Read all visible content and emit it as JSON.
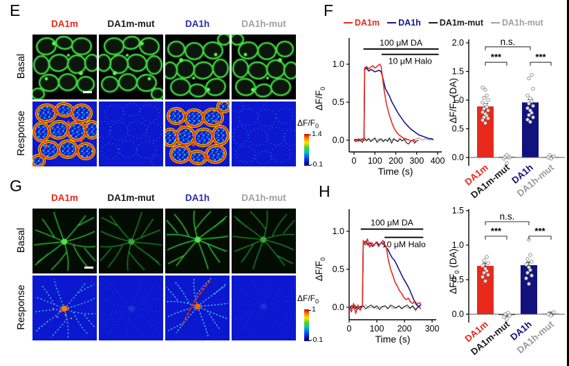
{
  "panels": {
    "E": {
      "letter": "E",
      "columns": [
        {
          "label": "DA1m",
          "color": "#e8291c"
        },
        {
          "label": "DA1m-mut",
          "color": "#1a1a1a"
        },
        {
          "label": "DA1h",
          "color": "#2a2aa8"
        },
        {
          "label": "DA1h-mut",
          "color": "#a0a0a0"
        }
      ],
      "row_labels": [
        "Basal",
        "Response"
      ],
      "colorbar": {
        "title_pre": "ΔF/F",
        "title_sub": "0",
        "max": "1.4",
        "min": "-0.1"
      }
    },
    "F": {
      "letter": "F",
      "legend": [
        {
          "label": "DA1m",
          "color": "#e8291c"
        },
        {
          "label": "DA1h",
          "color": "#16168c"
        },
        {
          "label": "DA1m-mut",
          "color": "#1a1a1a"
        },
        {
          "label": "DA1h-mut",
          "color": "#a0a0a0"
        }
      ]
    },
    "G": {
      "letter": "G",
      "columns": [
        {
          "label": "DA1m",
          "color": "#e8291c"
        },
        {
          "label": "DA1m-mut",
          "color": "#1a1a1a"
        },
        {
          "label": "DA1h",
          "color": "#2a2aa8"
        },
        {
          "label": "DA1h-mut",
          "color": "#a0a0a0"
        }
      ],
      "row_labels": [
        "Basal",
        "Response"
      ],
      "colorbar": {
        "title_pre": "ΔF/F",
        "title_sub": "0",
        "max": "1",
        "min": "-0.1"
      }
    },
    "H": {
      "letter": "H"
    }
  },
  "chart_data": [
    {
      "id": "F-trace",
      "type": "line",
      "xlabel": "Time (s)",
      "ylabel_pre": "ΔF/F",
      "ylabel_sub": "0",
      "ylabel_post": "",
      "xlim": [
        0,
        410
      ],
      "ylim": [
        -0.15,
        1.35
      ],
      "xticks": [
        0,
        100,
        200,
        300,
        400
      ],
      "yticks": [
        0,
        0.5,
        1
      ],
      "ytick_labels": [
        "0.0",
        "0.5",
        "1.0"
      ],
      "stim_bars": [
        {
          "label": "100 μM DA",
          "x0": 45,
          "x1": 405,
          "y": 1.2,
          "label_side": "above"
        },
        {
          "label": "10 μM Halo",
          "x0": 132,
          "x1": 405,
          "y": 1.13,
          "label_side": "below"
        }
      ],
      "series": [
        {
          "name": "DA1h-mut",
          "color": "#a0a0a0",
          "width": 1.1,
          "x": [
            0,
            10,
            20,
            30,
            40,
            50,
            60,
            70,
            80,
            90,
            100,
            110,
            120,
            130,
            140,
            150,
            160,
            170,
            180,
            190,
            200,
            210,
            220,
            230,
            240,
            250,
            260,
            270,
            280,
            290,
            300,
            310,
            320,
            330,
            340,
            350,
            360,
            370,
            380
          ],
          "y": [
            0,
            0.01,
            -0.01,
            0.02,
            0,
            -0.01,
            0.01,
            0.02,
            0,
            -0.01,
            0.01,
            0,
            0.02,
            -0.01,
            0,
            0.01,
            -0.02,
            0.01,
            0,
            0.02,
            -0.01,
            0,
            0.01,
            -0.01,
            0.02,
            0,
            0.01,
            -0.01,
            0,
            0.01,
            0.02,
            0.03,
            0.01,
            0,
            0.02,
            0.01,
            0,
            0.01,
            0
          ]
        },
        {
          "name": "DA1m-mut",
          "color": "#1a1a1a",
          "width": 1.1,
          "x": [
            0,
            10,
            20,
            30,
            40,
            50,
            60,
            70,
            80,
            90,
            100,
            110,
            120,
            130,
            140,
            150,
            160,
            170,
            180,
            190,
            200,
            210,
            220,
            230,
            240,
            250,
            260,
            270,
            280,
            290,
            300,
            310
          ],
          "y": [
            0.01,
            -0.02,
            0.02,
            0,
            -0.03,
            0.03,
            -0.01,
            0.02,
            -0.02,
            0.01,
            0.03,
            -0.03,
            0,
            0.02,
            -0.02,
            0.01,
            -0.01,
            0.03,
            -0.04,
            0.02,
            0,
            -0.02,
            0.02,
            -0.01,
            0.01,
            -0.03,
            -0.05,
            -0.02,
            0,
            -0.04,
            -0.01,
            0
          ]
        },
        {
          "name": "DA1h",
          "color": "#16168c",
          "width": 1.6,
          "x": [
            0,
            10,
            20,
            30,
            40,
            48,
            51,
            60,
            70,
            80,
            90,
            100,
            110,
            120,
            130,
            138,
            150,
            160,
            170,
            180,
            190,
            200,
            210,
            220,
            230,
            240,
            250,
            260,
            270,
            280,
            290,
            300,
            310,
            320,
            330,
            340,
            350,
            360,
            370,
            380
          ],
          "y": [
            0,
            0.01,
            -0.01,
            0,
            0.01,
            0.02,
            0.93,
            0.95,
            0.91,
            0.93,
            0.92,
            0.9,
            0.91,
            0.92,
            0.9,
            0.82,
            0.68,
            0.63,
            0.58,
            0.51,
            0.46,
            0.41,
            0.36,
            0.32,
            0.28,
            0.24,
            0.21,
            0.18,
            0.15,
            0.13,
            0.11,
            0.09,
            0.07,
            0.06,
            0.05,
            0.04,
            0.03,
            0.02,
            0.02,
            0.01
          ]
        },
        {
          "name": "DA1m",
          "color": "#e8291c",
          "width": 1.6,
          "x": [
            0,
            10,
            20,
            30,
            40,
            48,
            51,
            60,
            70,
            80,
            90,
            100,
            110,
            118,
            124,
            130,
            136,
            145,
            155,
            165,
            175,
            185,
            195,
            205,
            215,
            225,
            235,
            245,
            255,
            265,
            275,
            285,
            295,
            305
          ],
          "y": [
            0,
            -0.02,
            0.01,
            -0.01,
            0.02,
            0,
            0.95,
            0.97,
            0.94,
            0.96,
            0.98,
            0.95,
            0.97,
            0.99,
            1.0,
            0.97,
            0.84,
            0.64,
            0.48,
            0.37,
            0.28,
            0.2,
            0.14,
            0.1,
            0.07,
            0.05,
            0.03,
            0.02,
            0.01,
            0,
            -0.01,
            0.01,
            -0.02,
            0
          ]
        }
      ]
    },
    {
      "id": "F-bar",
      "type": "bar",
      "ylabel_pre": "ΔF/F",
      "ylabel_sub": "0",
      "ylabel_post": " (DA)",
      "ylim": [
        -0.15,
        2.0
      ],
      "yticks": [
        0,
        0.5,
        1,
        1.5,
        2
      ],
      "ytick_labels": [
        "0.0",
        "0.5",
        "1.0",
        "1.5",
        "2.0"
      ],
      "categories": [
        {
          "label": "DA1m",
          "color": "#e8291c"
        },
        {
          "label": "DA1m-mut",
          "color": "#1a1a1a"
        },
        {
          "label": "DA1h",
          "color": "#12127e"
        },
        {
          "label": "DA1h-mut",
          "color": "#9a9a9a"
        }
      ],
      "values": [
        0.89,
        0.01,
        0.96,
        0.01
      ],
      "errors": [
        0.05,
        0.02,
        0.05,
        0.02
      ],
      "scatter": [
        [
          0.6,
          0.65,
          0.68,
          0.7,
          0.73,
          0.76,
          0.79,
          0.82,
          0.85,
          0.88,
          0.92,
          0.96,
          1.0,
          1.04,
          1.08,
          1.18,
          1.22
        ],
        [
          -0.1,
          -0.02,
          0,
          0.01,
          0.02,
          0.04
        ],
        [
          0.62,
          0.66,
          0.7,
          0.74,
          0.78,
          0.82,
          0.86,
          0.9,
          0.94,
          0.98,
          1.03,
          1.08,
          1.2,
          1.38,
          1.44
        ],
        [
          -0.02,
          0,
          0.02,
          0.04
        ]
      ],
      "brackets": [
        {
          "i": 0,
          "j": 1,
          "label": "***",
          "y": 1.66
        },
        {
          "i": 2,
          "j": 3,
          "label": "***",
          "y": 1.66
        },
        {
          "i": 0,
          "j": 2,
          "label": "n.s.",
          "y": 1.93
        }
      ]
    },
    {
      "id": "H-trace",
      "type": "line",
      "xlabel": "Time (s)",
      "ylabel_pre": "ΔF/F",
      "ylabel_sub": "0",
      "ylabel_post": "",
      "xlim": [
        0,
        300
      ],
      "ylim": [
        -0.18,
        1.29
      ],
      "xticks": [
        0,
        100,
        200,
        300
      ],
      "yticks": [
        0,
        0.5,
        1
      ],
      "ytick_labels": [
        "0.0",
        "0.5",
        "1.0"
      ],
      "stim_bars": [
        {
          "label": "100 μM DA",
          "x0": 42,
          "x1": 268,
          "y": 1.03,
          "label_side": "above"
        },
        {
          "label": "10 μM Halo",
          "x0": 128,
          "x1": 268,
          "y": 0.92,
          "label_side": "below"
        }
      ],
      "series": [
        {
          "name": "DA1h-mut",
          "color": "#a0a0a0",
          "width": 1.1,
          "x": [
            0,
            10,
            20,
            30,
            40,
            50,
            60,
            70,
            80,
            90,
            100,
            110,
            120,
            130,
            140,
            150,
            160,
            170,
            180,
            190,
            200,
            210,
            220,
            230,
            240,
            250,
            260
          ],
          "y": [
            0.01,
            -0.01,
            0.02,
            0,
            -0.02,
            0.01,
            0.03,
            -0.01,
            0,
            0.02,
            -0.02,
            0.01,
            0,
            0.02,
            -0.01,
            0.01,
            -0.02,
            0,
            0.02,
            -0.01,
            0.01,
            0,
            -0.02,
            0.01,
            -0.05,
            0,
            0.02
          ]
        },
        {
          "name": "DA1m-mut",
          "color": "#1a1a1a",
          "width": 1.1,
          "x": [
            0,
            10,
            20,
            30,
            40,
            50,
            60,
            70,
            80,
            90,
            100,
            110,
            120,
            130,
            140,
            150,
            160,
            170,
            180,
            190,
            200,
            210,
            220,
            230,
            240,
            250,
            260
          ],
          "y": [
            0.02,
            -0.02,
            0.03,
            -0.03,
            0.01,
            0.02,
            -0.02,
            0.01,
            0.03,
            -0.01,
            0.02,
            -0.03,
            0.01,
            0.02,
            -0.02,
            0.03,
            0.01,
            -0.01,
            0.02,
            -0.02,
            0.01,
            0.03,
            -0.01,
            0.02,
            -0.03,
            0.01,
            -0.02
          ]
        },
        {
          "name": "DA1h",
          "color": "#16168c",
          "width": 1.6,
          "x": [
            0,
            10,
            20,
            30,
            40,
            48,
            51,
            60,
            68,
            76,
            84,
            92,
            100,
            108,
            116,
            124,
            132,
            140,
            148,
            156,
            164,
            172,
            180,
            188,
            196,
            204,
            212,
            220,
            228,
            236,
            244,
            252,
            260
          ],
          "y": [
            0,
            0.02,
            -0.02,
            0.01,
            0,
            0.01,
            0.84,
            0.87,
            0.82,
            0.85,
            0.8,
            0.83,
            0.86,
            0.82,
            0.85,
            0.83,
            0.8,
            0.76,
            0.7,
            0.65,
            0.62,
            0.56,
            0.5,
            0.44,
            0.38,
            0.33,
            0.28,
            0.22,
            0.15,
            0.08,
            0.03,
            0.01,
            0.04
          ]
        },
        {
          "name": "DA1m",
          "color": "#e8291c",
          "width": 1.6,
          "x": [
            0,
            8,
            16,
            24,
            32,
            40,
            48,
            51,
            58,
            66,
            74,
            82,
            90,
            98,
            106,
            114,
            122,
            128,
            134,
            142,
            150,
            158,
            166,
            174,
            182,
            190,
            198,
            206,
            214,
            222,
            230,
            238,
            246,
            254,
            260
          ],
          "y": [
            0.02,
            -0.06,
            0.05,
            -0.08,
            0.03,
            -0.04,
            0.02,
            0.88,
            0.82,
            0.9,
            0.79,
            0.85,
            0.81,
            0.86,
            0.8,
            0.84,
            0.88,
            0.83,
            0.8,
            0.62,
            0.5,
            0.42,
            0.33,
            0.28,
            0.22,
            0.18,
            0.13,
            0.1,
            0.12,
            0.07,
            0.05,
            0.08,
            0.04,
            0.06,
            0.05
          ]
        }
      ]
    },
    {
      "id": "H-bar",
      "type": "bar",
      "ylabel_pre": "ΔF/F",
      "ylabel_sub": "0",
      "ylabel_post": " (DA)",
      "ylim": [
        -0.12,
        1.5
      ],
      "yticks": [
        0,
        0.5,
        1,
        1.5
      ],
      "ytick_labels": [
        "0.0",
        "0.5",
        "1.0",
        "1.5"
      ],
      "categories": [
        {
          "label": "DA1m",
          "color": "#e8291c"
        },
        {
          "label": "DA1m-mut",
          "color": "#1a1a1a"
        },
        {
          "label": "DA1h",
          "color": "#12127e"
        },
        {
          "label": "DA1h-mut",
          "color": "#9a9a9a"
        }
      ],
      "values": [
        0.7,
        -0.01,
        0.71,
        0.01
      ],
      "errors": [
        0.04,
        0.02,
        0.045,
        0.02
      ],
      "scatter": [
        [
          0.48,
          0.54,
          0.57,
          0.6,
          0.63,
          0.66,
          0.7,
          0.74,
          0.78,
          0.83
        ],
        [
          -0.07,
          -0.04,
          -0.02,
          0,
          0.02
        ],
        [
          0.44,
          0.52,
          0.56,
          0.6,
          0.64,
          0.68,
          0.72,
          0.76,
          0.8,
          0.86,
          1.08
        ],
        [
          -0.02,
          0,
          0.03
        ]
      ],
      "brackets": [
        {
          "i": 0,
          "j": 1,
          "label": "***",
          "y": 1.13
        },
        {
          "i": 2,
          "j": 3,
          "label": "***",
          "y": 1.13
        },
        {
          "i": 0,
          "j": 2,
          "label": "n.s.",
          "y": 1.34
        }
      ]
    }
  ]
}
